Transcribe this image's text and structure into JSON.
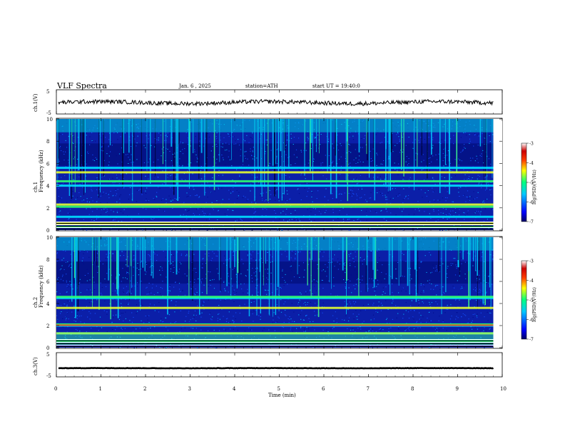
{
  "header": {
    "title": "VLF Spectra",
    "date": "Jan. 6 , 2025",
    "station": "station=ATH",
    "start": "start UT = 19:40:0"
  },
  "colors": {
    "spectrum_bg": "#0b1fa8",
    "trace": "#000000",
    "colormap": [
      "#000066",
      "#0000ff",
      "#00c8ff",
      "#00ff80",
      "#ffff00",
      "#ff4000",
      "#cc0000",
      "#ffffff"
    ]
  },
  "chart_data": [
    {
      "type": "line",
      "name": "channel-1-waveform",
      "ylabel": "ch.1(V)",
      "ylim": [
        -5,
        5
      ],
      "y_ticks": [
        "5",
        "-5"
      ],
      "xlim": [
        0,
        10
      ],
      "note_values": {
        "mean_level": -0.3
      }
    },
    {
      "type": "heatmap",
      "name": "channel-1-spectrogram",
      "ylabel": "ch.1 Frequency (kHz)",
      "ylim": [
        0,
        10
      ],
      "y_ticks": [
        "0",
        "2",
        "4",
        "6",
        "8",
        "10"
      ],
      "xlim": [
        0,
        9.8
      ],
      "colorbar": {
        "label": "log(PSD)(V²/Hz)",
        "range": [
          -7,
          -3
        ],
        "ticks": [
          "-3",
          "-4",
          "-5",
          "-6",
          "-7"
        ]
      },
      "bands_khz": [
        0.3,
        0.6,
        1.2,
        2.1,
        2.3,
        4.0,
        4.4,
        5.2,
        5.6
      ]
    },
    {
      "type": "heatmap",
      "name": "channel-2-spectrogram",
      "ylabel": "ch.2 Frequency (kHz)",
      "ylim": [
        0,
        10
      ],
      "y_ticks": [
        "0",
        "2",
        "4",
        "6",
        "8",
        "10"
      ],
      "xlim": [
        0,
        9.8
      ],
      "colorbar": {
        "label": "log(PSD)(V²/Hz)",
        "range": [
          -7,
          -3
        ],
        "ticks": [
          "-3",
          "-4",
          "-5",
          "-6",
          "-7"
        ]
      },
      "bands_khz": [
        0.6,
        1.3,
        2.0,
        2.1,
        3.6,
        4.5,
        4.6
      ]
    },
    {
      "type": "line",
      "name": "channel-3-waveform",
      "ylabel": "ch.3(V)",
      "ylim": [
        -5,
        5
      ],
      "y_ticks": [
        "5",
        "-5"
      ],
      "xlim": [
        0,
        10
      ],
      "note_values": {
        "mean_level": -1.5
      }
    }
  ],
  "xaxis": {
    "label": "Time (min)",
    "ticks": [
      "0",
      "1",
      "2",
      "3",
      "4",
      "5",
      "6",
      "7",
      "8",
      "9",
      "10"
    ],
    "range": [
      0,
      10
    ]
  }
}
